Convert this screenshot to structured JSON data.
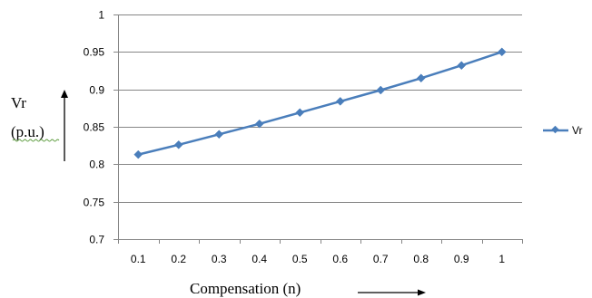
{
  "chart_data": {
    "type": "line",
    "x": [
      0.1,
      0.2,
      0.3,
      0.4,
      0.5,
      0.6,
      0.7,
      0.8,
      0.9,
      1
    ],
    "x_tick_labels": [
      "0.1",
      "0.2",
      "0.3",
      "0.4",
      "0.5",
      "0.6",
      "0.7",
      "0.8",
      "0.9",
      "1"
    ],
    "series": [
      {
        "name": "Vr",
        "values": [
          0.813,
          0.826,
          0.84,
          0.854,
          0.869,
          0.884,
          0.899,
          0.915,
          0.932,
          0.95
        ],
        "color": "#4a7ebb",
        "marker": "diamond"
      }
    ],
    "y_ticks": [
      0.7,
      0.75,
      0.8,
      0.85,
      0.9,
      0.95,
      1
    ],
    "y_tick_labels": [
      "0.7",
      "0.75",
      "0.8",
      "0.85",
      "0.9",
      "0.95",
      "1"
    ],
    "ylim": [
      0.7,
      1
    ],
    "xlabel": "Compensation (n)",
    "ylabel_line1": "Vr",
    "ylabel_line2": "(p.u.)",
    "grid": "horizontal",
    "legend_position": "right",
    "gridline_color": "#868686",
    "axis_color": "#868686"
  }
}
